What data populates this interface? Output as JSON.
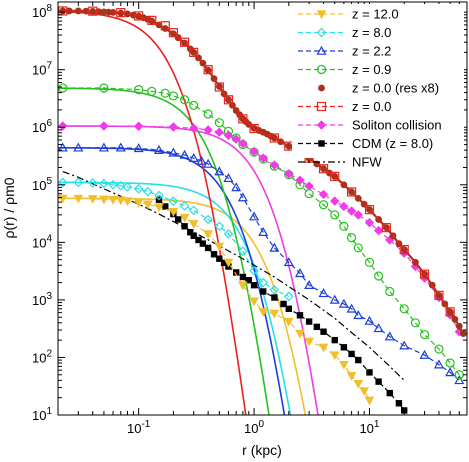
{
  "chart_data": {
    "type": "line",
    "xlabel": "r (kpc)",
    "ylabel": "ρ(r) / ρm0",
    "xscale": "log",
    "yscale": "log",
    "xlim": [
      0.02,
      70
    ],
    "ylim": [
      10,
      150000000
    ],
    "x_tick_labels": [
      {
        "value": 0.1,
        "base": "10",
        "exp": "-1"
      },
      {
        "value": 1,
        "base": "10",
        "exp": "0"
      },
      {
        "value": 10,
        "base": "10",
        "exp": "1"
      }
    ],
    "y_tick_labels": [
      {
        "value": 10,
        "base": "10",
        "exp": "1"
      },
      {
        "value": 100,
        "base": "10",
        "exp": "2"
      },
      {
        "value": 1000,
        "base": "10",
        "exp": "3"
      },
      {
        "value": 10000,
        "base": "10",
        "exp": "4"
      },
      {
        "value": 100000,
        "base": "10",
        "exp": "5"
      },
      {
        "value": 1000000,
        "base": "10",
        "exp": "6"
      },
      {
        "value": 10000000,
        "base": "10",
        "exp": "7"
      },
      {
        "value": 100000000,
        "base": "10",
        "exp": "8"
      }
    ],
    "legend_position": "top-right",
    "series": [
      {
        "name": "z = 12.0",
        "color": "#f2bf2c",
        "dash": "5,3",
        "marker": "triangle-down",
        "x": [
          0.022,
          0.03,
          0.04,
          0.05,
          0.06,
          0.07,
          0.08,
          0.1,
          0.12,
          0.15,
          0.2,
          0.25,
          0.3,
          0.4,
          0.5,
          0.6,
          0.8,
          1.0,
          1.2,
          1.5,
          2.0,
          2.5,
          3.0,
          4.0,
          5.0,
          6.0,
          7.0,
          8.0,
          9.0,
          10.0
        ],
        "y": [
          58000,
          58000,
          57000,
          56000,
          55000,
          54000,
          52000,
          49000,
          46000,
          41000,
          34000,
          27000,
          21000,
          14000,
          8500,
          4500,
          1800,
          950,
          620,
          580,
          420,
          260,
          190,
          150,
          110,
          75,
          48,
          35,
          26,
          18
        ]
      },
      {
        "name": "z = 8.0",
        "color": "#26e0e6",
        "dash": "5,3",
        "marker": "diamond-open",
        "x": [
          0.022,
          0.03,
          0.04,
          0.05,
          0.06,
          0.07,
          0.08,
          0.1,
          0.12,
          0.15,
          0.2,
          0.25,
          0.3,
          0.4,
          0.5,
          0.6,
          0.8,
          1.0,
          1.2,
          1.5,
          2.0
        ],
        "y": [
          110000,
          110000,
          108000,
          105000,
          100000,
          96000,
          92000,
          85000,
          76000,
          65000,
          52000,
          43000,
          36000,
          25000,
          19000,
          14000,
          7000,
          3200,
          2000,
          1500,
          1150
        ]
      },
      {
        "name": "z = 2.2",
        "color": "#1a3ed6",
        "dash": "5,3",
        "marker": "triangle-open",
        "x": [
          0.022,
          0.03,
          0.05,
          0.07,
          0.1,
          0.15,
          0.2,
          0.25,
          0.3,
          0.35,
          0.4,
          0.5,
          0.6,
          0.7,
          0.8,
          1.0,
          1.2,
          1.5,
          2.0,
          2.5,
          3.0,
          4.0,
          5.0,
          6.0,
          7.0,
          8.0,
          10.0,
          12.0,
          15.0,
          20.0,
          30.0,
          40.0,
          50.0,
          60.0
        ],
        "y": [
          440000,
          440000,
          440000,
          440000,
          430000,
          400000,
          360000,
          330000,
          290000,
          260000,
          230000,
          170000,
          130000,
          90000,
          60000,
          28000,
          15000,
          8000,
          4500,
          2900,
          1800,
          1300,
          1000,
          850,
          700,
          540,
          430,
          320,
          230,
          160,
          110,
          75,
          55,
          40
        ]
      },
      {
        "name": "z = 0.9",
        "color": "#24c21f",
        "dash": "5,3",
        "marker": "circle-open",
        "x": [
          0.022,
          0.05,
          0.1,
          0.13,
          0.17,
          0.2,
          0.25,
          0.3,
          0.4,
          0.5,
          0.6,
          0.7,
          0.8,
          1.0,
          1.2,
          1.5,
          2.0,
          2.5,
          3.0,
          4.0,
          5.0,
          6.0,
          7.0,
          8.0,
          10.0,
          12.0,
          15.0,
          20.0,
          25.0,
          30.0,
          40.0,
          50.0,
          60.0
        ],
        "y": [
          4800000,
          4800000,
          4500000,
          4200000,
          3900000,
          3500000,
          3000000,
          2400000,
          1700000,
          1200000,
          850000,
          650000,
          500000,
          370000,
          280000,
          210000,
          150000,
          100000,
          70000,
          45000,
          30000,
          19000,
          12000,
          8000,
          4500,
          2600,
          1400,
          700,
          400,
          250,
          140,
          80,
          50
        ]
      },
      {
        "name": "z = 0.0 (res x8)",
        "color": "#a5331a",
        "dash": "none",
        "marker": "circle-filled",
        "x": [
          0.022,
          0.025,
          0.03,
          0.035,
          0.04,
          0.045,
          0.05,
          0.055,
          0.06,
          0.07,
          0.08,
          0.09,
          0.1,
          0.11,
          0.12,
          0.13,
          0.15,
          0.17,
          0.2,
          0.22,
          0.25,
          0.28,
          0.3,
          0.33,
          0.36,
          0.4,
          0.45,
          0.5,
          0.55,
          0.6,
          0.65,
          0.7,
          0.75,
          0.8,
          0.85,
          0.9,
          1.0,
          1.1,
          1.2,
          1.3,
          1.4,
          1.5,
          1.7,
          2.0,
          2.3,
          2.6,
          3.0,
          3.5,
          4.0,
          4.5,
          5.0,
          6.0,
          7.0,
          8.0,
          9.0,
          10.0,
          12.0,
          14.0,
          16.0,
          18.0,
          20.0,
          25.0,
          30.0,
          35.0,
          40.0,
          45.0,
          50.0,
          55.0,
          60.0,
          65.0
        ],
        "y": [
          105000000,
          105000000,
          105000000,
          104000000,
          103000000,
          102000000,
          101000000,
          100000000,
          99000000,
          96000000,
          93000000,
          89000000,
          85000000,
          80000000,
          75000000,
          70000000,
          60000000,
          52000000,
          42000000,
          36000000,
          29000000,
          23000000,
          20000000,
          16000000,
          13000000,
          9800000,
          7000000,
          5100000,
          3800000,
          3000000,
          2400000,
          1950000,
          1650000,
          1400000,
          1250000,
          1120000,
          960000,
          880000,
          820000,
          760000,
          700000,
          650000,
          560000,
          470000,
          400000,
          340000,
          290000,
          230000,
          190000,
          160000,
          140000,
          100000,
          75000,
          58000,
          46000,
          37000,
          25000,
          18000,
          13000,
          9500,
          7500,
          4500,
          2800,
          1800,
          1200,
          850,
          620,
          460,
          350,
          260
        ]
      },
      {
        "name": "z = 0.0",
        "color": "#e8231f",
        "dash": "5,3",
        "marker": "square-open",
        "x": [
          0.022,
          0.04,
          0.07,
          0.1,
          0.13,
          0.17,
          0.2,
          0.25,
          0.3,
          0.4,
          0.5,
          0.6,
          0.8,
          1.0,
          1.5,
          2.0,
          3.0,
          4.0,
          5.0,
          7.0,
          10.0,
          14.0,
          20.0,
          30.0,
          40.0,
          50.0
        ],
        "y": [
          105000000,
          104000000,
          98000000,
          86000000,
          72000000,
          58000000,
          44000000,
          30000000,
          20000000,
          10000000,
          5000000,
          3000000,
          1400000,
          950000,
          650000,
          470000,
          290000,
          190000,
          140000,
          75000,
          37000,
          18000,
          7500,
          2800,
          1200,
          620
        ]
      },
      {
        "name": "Soliton collision",
        "color": "#f03ce6",
        "dash": "5,3",
        "marker": "diamond-filled",
        "x": [
          0.022,
          0.05,
          0.1,
          0.2,
          0.3,
          0.4,
          0.5,
          0.6,
          0.7,
          0.8,
          1.0,
          1.2,
          1.5,
          2.0,
          2.5,
          3.0,
          4.0,
          5.0,
          6.0,
          7.0,
          8.0,
          10.0,
          12.0,
          15.0,
          20.0,
          25.0,
          30.0,
          40.0,
          50.0,
          60.0
        ],
        "y": [
          1050000,
          1050000,
          1040000,
          1010000,
          960000,
          900000,
          820000,
          720000,
          620000,
          520000,
          380000,
          290000,
          220000,
          155000,
          120000,
          95000,
          68000,
          52000,
          42000,
          35000,
          30000,
          22000,
          16000,
          11000,
          6500,
          3800,
          2400,
          1100,
          550,
          280
        ]
      },
      {
        "name": "CDM (z = 8.0)",
        "color": "#000000",
        "dash": "5,3",
        "marker": "square-filled",
        "x": [
          0.15,
          0.17,
          0.2,
          0.22,
          0.25,
          0.28,
          0.3,
          0.33,
          0.36,
          0.4,
          0.45,
          0.5,
          0.55,
          0.6,
          0.7,
          0.8,
          0.9,
          1.0,
          1.2,
          1.5,
          1.8,
          2.0,
          2.5,
          3.0,
          3.5,
          4.0,
          5.0,
          6.0,
          7.0,
          8.0,
          10.0,
          12.0,
          15.0,
          18.0,
          20.0
        ],
        "y": [
          55000,
          42000,
          31000,
          25000,
          19000,
          15000,
          13000,
          11000,
          9500,
          8000,
          6200,
          5200,
          4400,
          3800,
          3000,
          2500,
          2200,
          1800,
          1400,
          1100,
          850,
          700,
          540,
          420,
          340,
          280,
          200,
          150,
          115,
          90,
          55,
          38,
          24,
          16,
          12
        ]
      },
      {
        "name": "NFW",
        "color": "#000000",
        "dash": "7,3,2,3",
        "marker": "none",
        "x": [
          0.022,
          0.03,
          0.05,
          0.07,
          0.1,
          0.15,
          0.2,
          0.3,
          0.5,
          0.7,
          1.0,
          1.5,
          2.0,
          3.0,
          5.0,
          7.0,
          10.0,
          15.0,
          20.0
        ],
        "y": [
          170000,
          135000,
          85000,
          63000,
          46000,
          31000,
          23000,
          15000,
          8700,
          6000,
          4000,
          2500,
          1700,
          1000,
          480,
          270,
          150,
          70,
          40
        ]
      }
    ],
    "soliton_fits": [
      {
        "series": "z = 12.0",
        "color": "#f2bf2c",
        "rho0": 58000,
        "rc": 0.6
      },
      {
        "series": "z = 8.0",
        "color": "#26e0e6",
        "rho0": 110000,
        "rc": 0.42
      },
      {
        "series": "z = 2.2",
        "color": "#1a3ed6",
        "rho0": 440000,
        "rc": 0.33
      },
      {
        "series": "z = 0.9",
        "color": "#24c21f",
        "rho0": 4800000,
        "rc": 0.2
      },
      {
        "series": "z = 0.0",
        "color": "#e8231f",
        "rho0": 105000000,
        "rc": 0.1
      },
      {
        "series": "Soliton collision",
        "color": "#f03ce6",
        "rho0": 1050000,
        "rc": 0.6
      }
    ]
  }
}
